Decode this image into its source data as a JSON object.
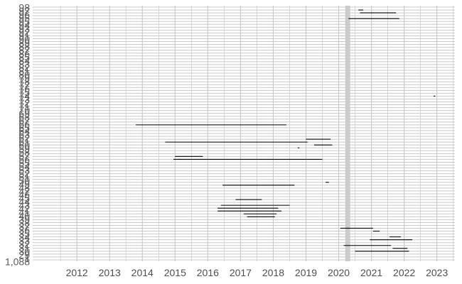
{
  "chart_data": {
    "type": "timeline",
    "title": "",
    "xlabel": "",
    "ylabel": "",
    "xlim": [
      2010.65,
      2023.55
    ],
    "x_ticks": [
      "2012",
      "2013",
      "2014",
      "2015",
      "2016",
      "2017",
      "2018",
      "2019",
      "2020",
      "2021",
      "2022",
      "2023"
    ],
    "y_tick_count": 73,
    "y_tick_labels_visible_top": [
      "98",
      "97",
      "96",
      "95"
    ],
    "y_tick_labels_visible_bottom": [
      "1",
      "1,088"
    ],
    "grid": true,
    "colors": {
      "segment": "#000000",
      "grid": "#c8c8c8",
      "band": "#cccccc"
    },
    "band": {
      "start": 2020.2,
      "end": 2020.35
    },
    "segments": [
      {
        "row": 1,
        "start": 2020.6,
        "end": 2020.75
      },
      {
        "row": 2,
        "start": 2020.65,
        "end": 2021.75
      },
      {
        "row": 4,
        "start": 2020.3,
        "end": 2021.85
      },
      {
        "row": 31,
        "start": 2022.9,
        "end": 2022.95
      },
      {
        "row": 41,
        "start": 2013.8,
        "end": 2018.4
      },
      {
        "row": 46,
        "start": 2019.0,
        "end": 2019.75
      },
      {
        "row": 47,
        "start": 2014.7,
        "end": 2019.05
      },
      {
        "row": 48,
        "start": 2019.25,
        "end": 2019.8
      },
      {
        "row": 49,
        "start": 2018.75,
        "end": 2018.8
      },
      {
        "row": 52,
        "start": 2015.0,
        "end": 2015.85
      },
      {
        "row": 53,
        "start": 2014.95,
        "end": 2015.15
      },
      {
        "row": 53,
        "start": 2015.1,
        "end": 2019.5
      },
      {
        "row": 61,
        "start": 2019.6,
        "end": 2019.7
      },
      {
        "row": 62,
        "start": 2016.45,
        "end": 2018.65
      },
      {
        "row": 67,
        "start": 2016.85,
        "end": 2017.65
      },
      {
        "row": 69,
        "start": 2016.4,
        "end": 2018.5
      },
      {
        "row": 70,
        "start": 2016.3,
        "end": 2018.15
      },
      {
        "row": 71,
        "start": 2016.3,
        "end": 2018.25
      },
      {
        "row": 72,
        "start": 2017.1,
        "end": 2018.1
      },
      {
        "row": 73,
        "start": 2017.2,
        "end": 2018.05
      },
      {
        "row": 77,
        "start": 2020.05,
        "end": 2021.05
      },
      {
        "row": 78,
        "start": 2021.05,
        "end": 2021.25
      },
      {
        "row": 80,
        "start": 2021.55,
        "end": 2021.9
      },
      {
        "row": 81,
        "start": 2020.95,
        "end": 2022.25
      },
      {
        "row": 83,
        "start": 2020.15,
        "end": 2021.6
      },
      {
        "row": 84,
        "start": 2021.65,
        "end": 2022.1
      },
      {
        "row": 85,
        "start": 2020.5,
        "end": 2022.15
      }
    ]
  }
}
